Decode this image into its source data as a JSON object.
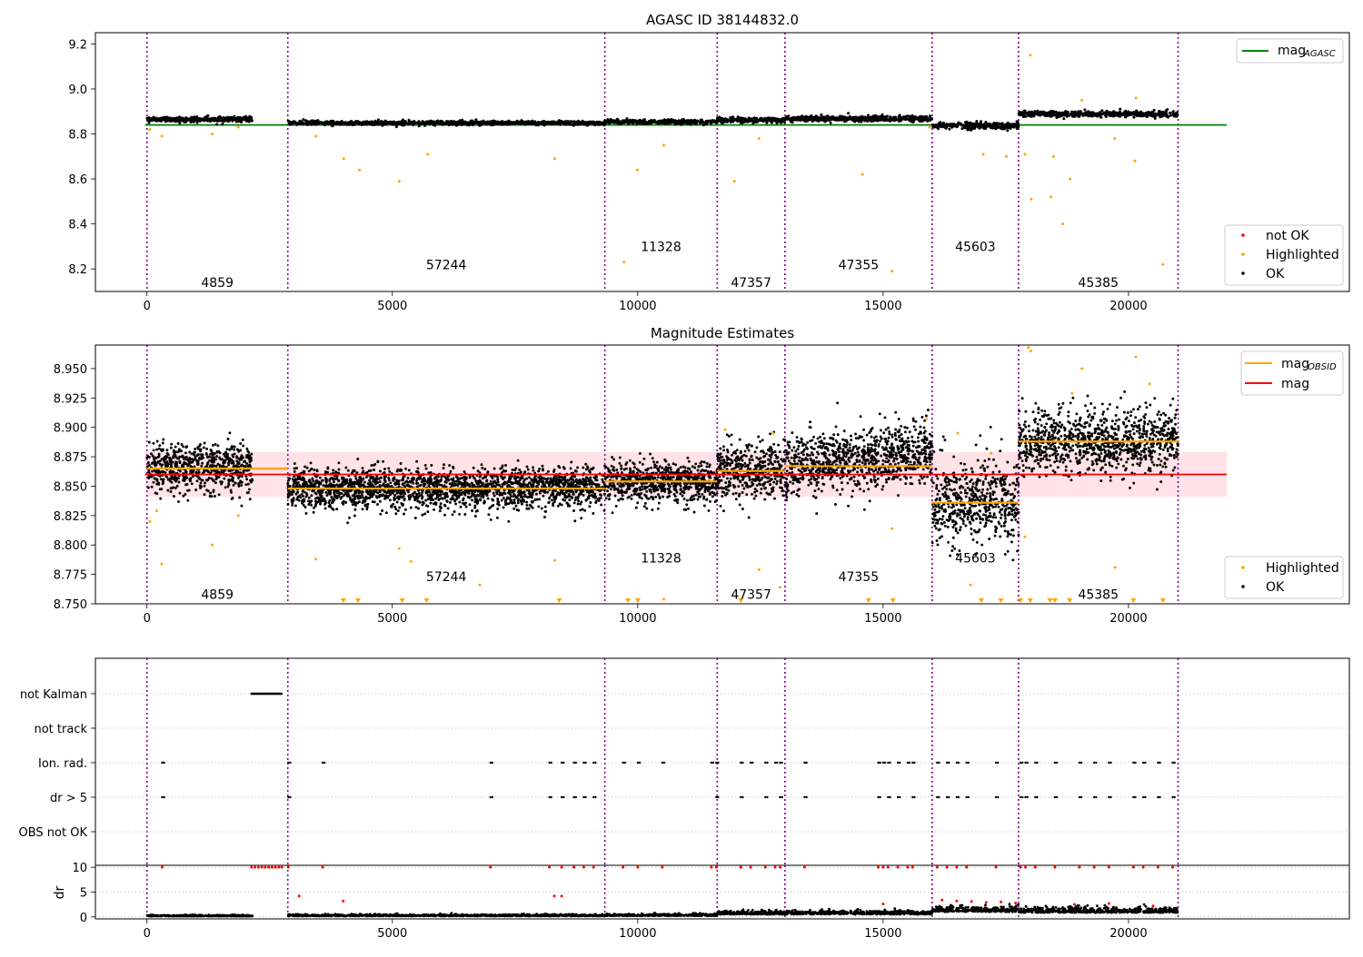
{
  "chart_data": [
    {
      "type": "scatter",
      "panel": "agasc",
      "title": "AGASC ID 38144832.0",
      "xlim": [
        -1050,
        24500
      ],
      "ylim": [
        8.1,
        9.25
      ],
      "yticks": [
        8.2,
        8.4,
        8.6,
        8.8,
        9.0,
        9.2
      ],
      "ytick_labels": [
        "8.2",
        "8.4",
        "8.6",
        "8.8",
        "9.0",
        "9.2"
      ],
      "xticks": [
        0,
        5000,
        10000,
        15000,
        20000
      ],
      "xtick_labels": [
        "0",
        "5000",
        "10000",
        "15000",
        "20000"
      ],
      "obsid_boundaries": [
        0,
        2870,
        9330,
        11620,
        13000,
        16000,
        17760,
        21010
      ],
      "obsid_labels": [
        {
          "x": 1435,
          "y": 8.14,
          "text": "4859"
        },
        {
          "x": 6100,
          "y": 8.22,
          "text": "57244"
        },
        {
          "x": 10475,
          "y": 8.3,
          "text": "11328"
        },
        {
          "x": 12310,
          "y": 8.14,
          "text": "47357"
        },
        {
          "x": 14500,
          "y": 8.22,
          "text": "47355"
        },
        {
          "x": 16880,
          "y": 8.3,
          "text": "45603"
        },
        {
          "x": 19385,
          "y": 8.14,
          "text": "45385"
        }
      ],
      "segments": [
        {
          "x0": 0,
          "x1": 2150,
          "mean": 8.865,
          "spread": 0.012
        },
        {
          "x0": 2870,
          "x1": 9330,
          "mean": 8.849,
          "spread": 0.01
        },
        {
          "x0": 9330,
          "x1": 11620,
          "mean": 8.854,
          "spread": 0.01
        },
        {
          "x0": 11620,
          "x1": 13000,
          "mean": 8.862,
          "spread": 0.012
        },
        {
          "x0": 13000,
          "x1": 16000,
          "mean": 8.868,
          "spread": 0.014
        },
        {
          "x0": 16000,
          "x1": 17760,
          "mean": 8.836,
          "spread": 0.016
        },
        {
          "x0": 17760,
          "x1": 21010,
          "mean": 8.888,
          "spread": 0.014
        }
      ],
      "mag_agasc": 8.84,
      "highlighted_outliers": [
        {
          "x": 60,
          "y": 8.82
        },
        {
          "x": 300,
          "y": 8.79
        },
        {
          "x": 1330,
          "y": 8.8
        },
        {
          "x": 1860,
          "y": 8.83
        },
        {
          "x": 3440,
          "y": 8.79
        },
        {
          "x": 4010,
          "y": 8.69
        },
        {
          "x": 4330,
          "y": 8.64
        },
        {
          "x": 5140,
          "y": 8.59
        },
        {
          "x": 5720,
          "y": 8.71
        },
        {
          "x": 8310,
          "y": 8.69
        },
        {
          "x": 9720,
          "y": 8.23
        },
        {
          "x": 9990,
          "y": 8.64
        },
        {
          "x": 10530,
          "y": 8.75
        },
        {
          "x": 11970,
          "y": 8.59
        },
        {
          "x": 12470,
          "y": 8.78
        },
        {
          "x": 14580,
          "y": 8.62
        },
        {
          "x": 15180,
          "y": 8.19
        },
        {
          "x": 17040,
          "y": 8.71
        },
        {
          "x": 17510,
          "y": 8.7
        },
        {
          "x": 17890,
          "y": 8.71
        },
        {
          "x": 18020,
          "y": 8.51
        },
        {
          "x": 18000,
          "y": 9.15
        },
        {
          "x": 18420,
          "y": 8.52
        },
        {
          "x": 18660,
          "y": 8.4
        },
        {
          "x": 18810,
          "y": 8.6
        },
        {
          "x": 19720,
          "y": 8.78
        },
        {
          "x": 20130,
          "y": 8.68
        },
        {
          "x": 20700,
          "y": 8.22
        },
        {
          "x": 18470,
          "y": 8.7
        },
        {
          "x": 15950,
          "y": 8.83
        },
        {
          "x": 20150,
          "y": 8.96
        },
        {
          "x": 19050,
          "y": 8.95
        }
      ],
      "legend_lines": [
        {
          "label": "mag",
          "sub": "AGASC",
          "color": "#008000"
        }
      ],
      "legend_points": [
        {
          "label": "not OK",
          "color": "#ff0000"
        },
        {
          "label": "Highlighted",
          "color": "#ffa500"
        },
        {
          "label": "OK",
          "color": "#000000"
        }
      ]
    },
    {
      "type": "scatter",
      "panel": "estimates",
      "title": "Magnitude Estimates",
      "xlim": [
        -1050,
        24500
      ],
      "ylim": [
        8.75,
        8.97
      ],
      "yticks": [
        8.75,
        8.775,
        8.8,
        8.825,
        8.85,
        8.875,
        8.9,
        8.925,
        8.95
      ],
      "ytick_labels": [
        "8.750",
        "8.775",
        "8.800",
        "8.825",
        "8.850",
        "8.875",
        "8.900",
        "8.925",
        "8.950"
      ],
      "xticks": [
        0,
        5000,
        10000,
        15000,
        20000
      ],
      "xtick_labels": [
        "0",
        "5000",
        "10000",
        "15000",
        "20000"
      ],
      "mag": 8.86,
      "mag_band": [
        8.841,
        8.879
      ],
      "obsid_means": [
        {
          "x0": 0,
          "x1": 2870,
          "y": 8.865
        },
        {
          "x0": 2870,
          "x1": 9330,
          "y": 8.848
        },
        {
          "x0": 9330,
          "x1": 11620,
          "y": 8.854
        },
        {
          "x0": 11620,
          "x1": 13000,
          "y": 8.863
        },
        {
          "x0": 13000,
          "x1": 16000,
          "y": 8.867
        },
        {
          "x0": 16000,
          "x1": 17760,
          "y": 8.836
        },
        {
          "x0": 17760,
          "x1": 21010,
          "y": 8.888
        }
      ],
      "obsid_labels": [
        {
          "x": 1435,
          "y": 8.758,
          "text": "4859"
        },
        {
          "x": 6100,
          "y": 8.773,
          "text": "57244"
        },
        {
          "x": 10475,
          "y": 8.789,
          "text": "11328"
        },
        {
          "x": 12310,
          "y": 8.758,
          "text": "47357"
        },
        {
          "x": 14500,
          "y": 8.773,
          "text": "47355"
        },
        {
          "x": 16880,
          "y": 8.789,
          "text": "45603"
        },
        {
          "x": 19385,
          "y": 8.758,
          "text": "45385"
        }
      ],
      "highlighted_outliers": [
        {
          "x": 60,
          "y": 8.82
        },
        {
          "x": 200,
          "y": 8.829
        },
        {
          "x": 300,
          "y": 8.784
        },
        {
          "x": 1330,
          "y": 8.8
        },
        {
          "x": 1860,
          "y": 8.825
        },
        {
          "x": 3440,
          "y": 8.788
        },
        {
          "x": 5140,
          "y": 8.797
        },
        {
          "x": 5380,
          "y": 8.786
        },
        {
          "x": 6780,
          "y": 8.766
        },
        {
          "x": 8310,
          "y": 8.787
        },
        {
          "x": 10530,
          "y": 8.754
        },
        {
          "x": 12470,
          "y": 8.779
        },
        {
          "x": 12900,
          "y": 8.764
        },
        {
          "x": 11780,
          "y": 8.898
        },
        {
          "x": 12760,
          "y": 8.895
        },
        {
          "x": 15180,
          "y": 8.814
        },
        {
          "x": 15880,
          "y": 8.907
        },
        {
          "x": 16520,
          "y": 8.895
        },
        {
          "x": 16780,
          "y": 8.766
        },
        {
          "x": 17890,
          "y": 8.807
        },
        {
          "x": 17960,
          "y": 8.968
        },
        {
          "x": 18010,
          "y": 8.965
        },
        {
          "x": 19050,
          "y": 8.95
        },
        {
          "x": 19730,
          "y": 8.781
        },
        {
          "x": 20150,
          "y": 8.96
        },
        {
          "x": 20430,
          "y": 8.937
        },
        {
          "x": 17200,
          "y": 8.878
        },
        {
          "x": 18850,
          "y": 8.929
        }
      ],
      "clipped_markers": [
        4000,
        4300,
        5200,
        5700,
        8400,
        9800,
        10000,
        12100,
        14700,
        15200,
        17000,
        17400,
        17800,
        18000,
        18400,
        18500,
        18800,
        20100,
        20700
      ],
      "legend_lines": [
        {
          "label": "mag",
          "sub": "OBSID",
          "color": "#ffa500"
        },
        {
          "label": "mag",
          "sub": "",
          "color": "#ff0000"
        }
      ],
      "legend_points": [
        {
          "label": "Highlighted",
          "color": "#ffa500"
        },
        {
          "label": "OK",
          "color": "#000000"
        }
      ]
    },
    {
      "type": "scatter",
      "panel": "flags",
      "categories": [
        "not Kalman",
        "not track",
        "Ion. rad.",
        "dr > 5",
        "OBS not OK"
      ],
      "xlim": [
        -1050,
        24500
      ],
      "not_kalman_range": [
        2130,
        2750
      ],
      "ion_rad_x": [
        310,
        2880,
        3580,
        7000,
        8200,
        8450,
        8700,
        8900,
        9100,
        9700,
        10000,
        10500,
        11500,
        11600,
        12100,
        12300,
        12600,
        12800,
        12900,
        13400,
        14900,
        15000,
        15100,
        15300,
        15500,
        15600,
        16100,
        16300,
        16500,
        16700,
        17300,
        17800,
        17900,
        18100,
        18500,
        19000,
        19300,
        19600,
        20100,
        20300,
        20600,
        20900
      ],
      "dr_gt5_x": [
        310,
        2880,
        7000,
        8200,
        8450,
        8700,
        8900,
        9100,
        11600,
        12100,
        12600,
        12900,
        13400,
        14900,
        15100,
        15300,
        15600,
        16100,
        16300,
        16500,
        16700,
        17300,
        17800,
        17900,
        18100,
        18500,
        19000,
        19300,
        19600,
        20100,
        20300,
        20600,
        20900
      ]
    },
    {
      "type": "scatter",
      "panel": "dr",
      "ylabel": "dr",
      "xlim": [
        -1050,
        24500
      ],
      "ylim": [
        -0.4,
        10.4
      ],
      "yticks": [
        0,
        5,
        10
      ],
      "ytick_labels": [
        "0",
        "5",
        "10"
      ],
      "xticks": [
        0,
        5000,
        10000,
        15000,
        20000
      ],
      "xtick_labels": [
        "0",
        "5000",
        "10000",
        "15000",
        "20000"
      ],
      "red_at_ten_x": [
        310,
        2130,
        2200,
        2270,
        2340,
        2410,
        2480,
        2550,
        2620,
        2690,
        2750,
        2880,
        3580,
        7000,
        8200,
        8450,
        8700,
        8900,
        9100,
        9700,
        10000,
        10500,
        11500,
        11600,
        12100,
        12300,
        12600,
        12800,
        12900,
        13400,
        14900,
        15000,
        15100,
        15300,
        15500,
        15600,
        16100,
        16300,
        16500,
        16700,
        17300,
        17800,
        17900,
        18100,
        18500,
        19000,
        19300,
        19600,
        20100,
        20300,
        20600,
        20900
      ],
      "red_scatter": [
        {
          "x": 3100,
          "y": 4.2
        },
        {
          "x": 4000,
          "y": 3.2
        },
        {
          "x": 8300,
          "y": 4.2
        },
        {
          "x": 8450,
          "y": 4.2
        },
        {
          "x": 16200,
          "y": 3.4
        },
        {
          "x": 16500,
          "y": 3.2
        },
        {
          "x": 16800,
          "y": 3.1
        },
        {
          "x": 17100,
          "y": 2.9
        },
        {
          "x": 17400,
          "y": 3.0
        },
        {
          "x": 17700,
          "y": 2.8
        },
        {
          "x": 15000,
          "y": 2.6
        },
        {
          "x": 18900,
          "y": 2.5
        },
        {
          "x": 19600,
          "y": 2.7
        },
        {
          "x": 20500,
          "y": 2.2
        }
      ],
      "segments": [
        {
          "x0": 0,
          "x1": 2150,
          "level": 0.2,
          "spread": 0.2
        },
        {
          "x0": 2870,
          "x1": 9330,
          "level": 0.25,
          "spread": 0.25
        },
        {
          "x0": 9330,
          "x1": 11620,
          "level": 0.3,
          "spread": 0.3
        },
        {
          "x0": 11620,
          "x1": 16000,
          "level": 0.7,
          "spread": 0.6
        },
        {
          "x0": 16000,
          "x1": 17760,
          "level": 1.3,
          "spread": 0.9
        },
        {
          "x0": 17760,
          "x1": 21010,
          "level": 1.1,
          "spread": 0.8
        }
      ]
    }
  ]
}
